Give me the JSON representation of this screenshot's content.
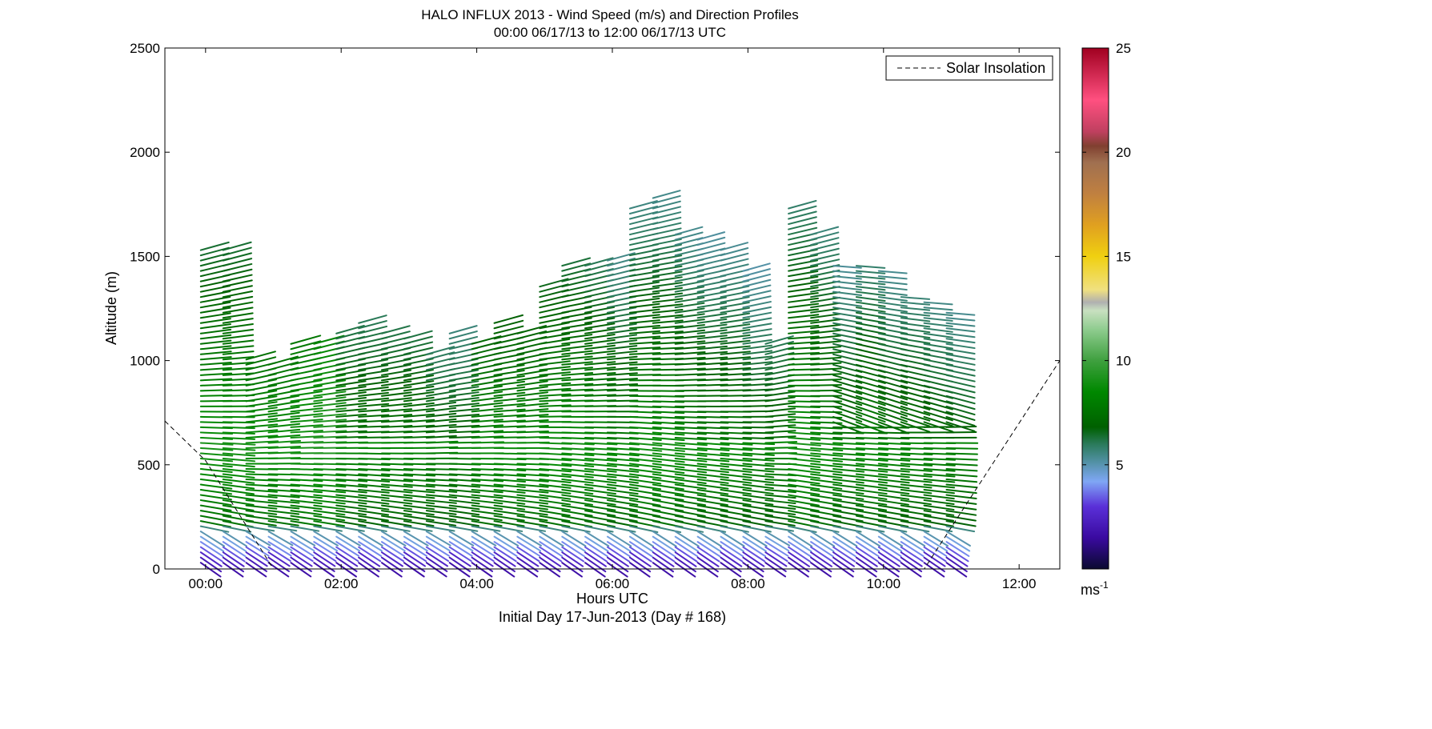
{
  "chart_data": {
    "type": "vector-field",
    "title": "HALO INFLUX 2013 - Wind Speed (m/s) and Direction Profiles",
    "subtitle": "00:00 06/17/13 to 12:00 06/17/13  UTC",
    "xlabel": "Hours UTC",
    "xlabel2": "Initial Day 17-Jun-2013 (Day # 168)",
    "ylabel": "Altitude (m)",
    "xlim": [
      -0.6,
      12.6
    ],
    "ylim": [
      0,
      2500
    ],
    "x_ticks": [
      {
        "value": 0,
        "label": "00:00"
      },
      {
        "value": 2,
        "label": "02:00"
      },
      {
        "value": 4,
        "label": "04:00"
      },
      {
        "value": 6,
        "label": "06:00"
      },
      {
        "value": 8,
        "label": "08:00"
      },
      {
        "value": 10,
        "label": "10:00"
      },
      {
        "value": 12,
        "label": "12:00"
      }
    ],
    "y_ticks": [
      {
        "value": 0,
        "label": "0"
      },
      {
        "value": 500,
        "label": "500"
      },
      {
        "value": 1000,
        "label": "1000"
      },
      {
        "value": 1500,
        "label": "1500"
      },
      {
        "value": 2000,
        "label": "2000"
      },
      {
        "value": 2500,
        "label": "2500"
      }
    ],
    "grid": false,
    "legend": {
      "position": "top-right",
      "entry": "Solar Insolation"
    },
    "colorbar": {
      "range": [
        0,
        25
      ],
      "ticks": [
        {
          "value": 5,
          "label": "5"
        },
        {
          "value": 10,
          "label": "10"
        },
        {
          "value": 15,
          "label": "15"
        },
        {
          "value": 20,
          "label": "20"
        },
        {
          "value": 25,
          "label": "25"
        }
      ],
      "unit_base": "ms",
      "unit_exp": "-1",
      "stops": [
        {
          "v": 0,
          "c": "#0a0a30"
        },
        {
          "v": 1.5,
          "c": "#3a0aa0"
        },
        {
          "v": 3,
          "c": "#5a30d8"
        },
        {
          "v": 4.2,
          "c": "#7fa7f5"
        },
        {
          "v": 5.2,
          "c": "#4f8f9f"
        },
        {
          "v": 6,
          "c": "#2a7a5a"
        },
        {
          "v": 6.8,
          "c": "#006000"
        },
        {
          "v": 8.5,
          "c": "#008800"
        },
        {
          "v": 10,
          "c": "#3fa03f"
        },
        {
          "v": 11.5,
          "c": "#8fcc8f"
        },
        {
          "v": 12.4,
          "c": "#c8e0c0"
        },
        {
          "v": 12.8,
          "c": "#b0b0b0"
        },
        {
          "v": 13.4,
          "c": "#f0e080"
        },
        {
          "v": 15,
          "c": "#f0d010"
        },
        {
          "v": 16.5,
          "c": "#e0a020"
        },
        {
          "v": 18,
          "c": "#c08040"
        },
        {
          "v": 19.5,
          "c": "#a07050"
        },
        {
          "v": 20.3,
          "c": "#804030"
        },
        {
          "v": 21,
          "c": "#c04060"
        },
        {
          "v": 22.5,
          "c": "#ff5080"
        },
        {
          "v": 25,
          "c": "#a00020"
        }
      ]
    },
    "solar_insolation": {
      "style": "dashed",
      "color": "#000000",
      "x": [
        -0.6,
        0.0,
        1.0,
        10.6,
        12.6
      ],
      "y": [
        710,
        520,
        0,
        0,
        1000
      ]
    },
    "profiles": [
      {
        "t": 0.0,
        "top": 1540,
        "core": 0.9
      },
      {
        "t": 0.33,
        "top": 1530,
        "core": 0.9
      },
      {
        "t": 0.67,
        "top": 1020,
        "core": 0.8
      },
      {
        "t": 1.0,
        "top": 980,
        "core": 0.8
      },
      {
        "t": 1.33,
        "top": 1080,
        "core": 1.0
      },
      {
        "t": 1.67,
        "top": 1100,
        "core": 1.2
      },
      {
        "t": 2.0,
        "top": 1130,
        "core": 0.4
      },
      {
        "t": 2.33,
        "top": 1190,
        "core": 0.4
      },
      {
        "t": 2.67,
        "top": 1150,
        "core": 0.4
      },
      {
        "t": 3.0,
        "top": 1120,
        "core": 0.4
      },
      {
        "t": 3.33,
        "top": 1040,
        "core": 0.2
      },
      {
        "t": 3.67,
        "top": 1130,
        "core": 0.2
      },
      {
        "t": 4.0,
        "top": 1100,
        "core": 0.7
      },
      {
        "t": 4.33,
        "top": 1190,
        "core": 0.7
      },
      {
        "t": 4.67,
        "top": 1150,
        "core": 0.7
      },
      {
        "t": 5.0,
        "top": 1370,
        "core": 0.8
      },
      {
        "t": 5.33,
        "top": 1470,
        "core": 0.8
      },
      {
        "t": 5.67,
        "top": 1460,
        "core": 0.7
      },
      {
        "t": 6.0,
        "top": 1490,
        "core": 0.5
      },
      {
        "t": 6.33,
        "top": 1750,
        "core": 0.8
      },
      {
        "t": 6.67,
        "top": 1800,
        "core": 0.8
      },
      {
        "t": 7.0,
        "top": 1620,
        "core": 0.6
      },
      {
        "t": 7.33,
        "top": 1580,
        "core": 0.5
      },
      {
        "t": 7.67,
        "top": 1540,
        "core": 0.5
      },
      {
        "t": 8.0,
        "top": 1440,
        "core": 0.3
      },
      {
        "t": 8.33,
        "top": 1080,
        "core": 0.3
      },
      {
        "t": 8.67,
        "top": 1740,
        "core": 0.9
      },
      {
        "t": 9.0,
        "top": 1620,
        "core": 0.7
      },
      {
        "t": 9.33,
        "top": 1460,
        "core": 0.4
      },
      {
        "t": 9.67,
        "top": 1460,
        "core": 0.6
      },
      {
        "t": 10.0,
        "top": 1450,
        "core": 0.4
      },
      {
        "t": 10.33,
        "top": 1310,
        "core": 0.4
      },
      {
        "t": 10.67,
        "top": 1280,
        "core": 0.3
      },
      {
        "t": 11.0,
        "top": 1250,
        "core": 0.2
      }
    ]
  }
}
